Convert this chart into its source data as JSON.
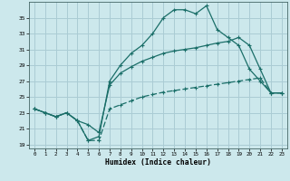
{
  "xlabel": "Humidex (Indice chaleur)",
  "xlim": [
    -0.5,
    23.5
  ],
  "ylim": [
    18.5,
    37.0
  ],
  "yticks": [
    19,
    21,
    23,
    25,
    27,
    29,
    31,
    33,
    35
  ],
  "xticks": [
    0,
    1,
    2,
    3,
    4,
    5,
    6,
    7,
    8,
    9,
    10,
    11,
    12,
    13,
    14,
    15,
    16,
    17,
    18,
    19,
    20,
    21,
    22,
    23
  ],
  "bg_color": "#cce8ec",
  "grid_color": "#aaccd4",
  "line_color": "#1a6e68",
  "line1_y": [
    23.5,
    23.0,
    22.5,
    23.0,
    22.0,
    19.5,
    20.0,
    27.0,
    29.0,
    30.5,
    31.5,
    33.0,
    35.0,
    36.0,
    36.0,
    35.5,
    36.5,
    33.5,
    32.5,
    31.5,
    28.5,
    27.0,
    25.5,
    25.5
  ],
  "line2_y": [
    23.5,
    23.0,
    22.5,
    23.0,
    22.0,
    21.5,
    20.5,
    26.5,
    28.0,
    28.8,
    29.5,
    30.0,
    30.5,
    30.8,
    31.0,
    31.2,
    31.5,
    31.8,
    32.0,
    32.5,
    31.5,
    28.5,
    25.5,
    25.5
  ],
  "line3_y": [
    23.5,
    23.0,
    22.5,
    23.0,
    22.0,
    19.5,
    19.5,
    23.5,
    24.0,
    24.5,
    25.0,
    25.3,
    25.6,
    25.8,
    26.0,
    26.2,
    26.4,
    26.6,
    26.8,
    27.0,
    27.2,
    27.4,
    25.5,
    25.5
  ]
}
